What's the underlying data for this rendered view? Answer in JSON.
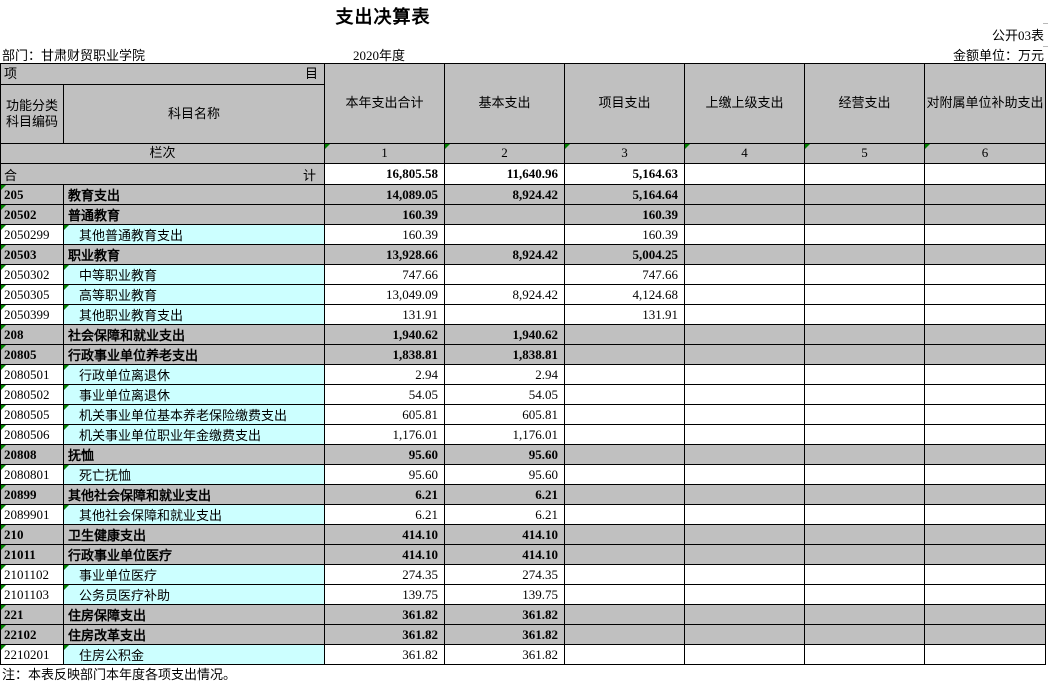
{
  "meta": {
    "title": "支出决算表",
    "table_code": "公开03表",
    "department": "部门：甘肃财贸职业学院",
    "year": "2020年度",
    "unit": "金额单位：万元",
    "note": "注：本表反映部门本年度各项支出情况。"
  },
  "colors": {
    "header_bg": "#C0C0C0",
    "detail_name_bg": "#CCFFFF",
    "error_indicator": "#008000"
  },
  "header": {
    "item_left": "项",
    "item_right": "目",
    "code_col": "功能分类科目编码",
    "name_col": "科目名称",
    "value_cols": [
      "本年支出合计",
      "基本支出",
      "项目支出",
      "上缴上级支出",
      "经营支出",
      "对附属单位补助支出"
    ],
    "lanci_label": "栏次",
    "col_numbers": [
      "1",
      "2",
      "3",
      "4",
      "5",
      "6"
    ]
  },
  "total_row": {
    "label_left": "合",
    "label_right": "计",
    "values": [
      "16,805.58",
      "11,640.96",
      "5,164.63",
      "",
      "",
      ""
    ]
  },
  "rows": [
    {
      "code": "205",
      "name": "教育支出",
      "level": "group",
      "values": [
        "14,089.05",
        "8,924.42",
        "5,164.64",
        "",
        "",
        ""
      ]
    },
    {
      "code": "20502",
      "name": "普通教育",
      "level": "group",
      "values": [
        "160.39",
        "",
        "160.39",
        "",
        "",
        ""
      ]
    },
    {
      "code": "2050299",
      "name": "其他普通教育支出",
      "level": "detail",
      "values": [
        "160.39",
        "",
        "160.39",
        "",
        "",
        ""
      ]
    },
    {
      "code": "20503",
      "name": "职业教育",
      "level": "group",
      "values": [
        "13,928.66",
        "8,924.42",
        "5,004.25",
        "",
        "",
        ""
      ]
    },
    {
      "code": "2050302",
      "name": "中等职业教育",
      "level": "detail",
      "values": [
        "747.66",
        "",
        "747.66",
        "",
        "",
        ""
      ]
    },
    {
      "code": "2050305",
      "name": "高等职业教育",
      "level": "detail",
      "values": [
        "13,049.09",
        "8,924.42",
        "4,124.68",
        "",
        "",
        ""
      ]
    },
    {
      "code": "2050399",
      "name": "其他职业教育支出",
      "level": "detail",
      "values": [
        "131.91",
        "",
        "131.91",
        "",
        "",
        ""
      ]
    },
    {
      "code": "208",
      "name": "社会保障和就业支出",
      "level": "group",
      "values": [
        "1,940.62",
        "1,940.62",
        "",
        "",
        "",
        ""
      ]
    },
    {
      "code": "20805",
      "name": "行政事业单位养老支出",
      "level": "group",
      "values": [
        "1,838.81",
        "1,838.81",
        "",
        "",
        "",
        ""
      ]
    },
    {
      "code": "2080501",
      "name": "行政单位离退休",
      "level": "detail",
      "values": [
        "2.94",
        "2.94",
        "",
        "",
        "",
        ""
      ]
    },
    {
      "code": "2080502",
      "name": "事业单位离退休",
      "level": "detail",
      "values": [
        "54.05",
        "54.05",
        "",
        "",
        "",
        ""
      ]
    },
    {
      "code": "2080505",
      "name": "机关事业单位基本养老保险缴费支出",
      "level": "detail",
      "values": [
        "605.81",
        "605.81",
        "",
        "",
        "",
        ""
      ]
    },
    {
      "code": "2080506",
      "name": "机关事业单位职业年金缴费支出",
      "level": "detail",
      "values": [
        "1,176.01",
        "1,176.01",
        "",
        "",
        "",
        ""
      ]
    },
    {
      "code": "20808",
      "name": "抚恤",
      "level": "group",
      "values": [
        "95.60",
        "95.60",
        "",
        "",
        "",
        ""
      ]
    },
    {
      "code": "2080801",
      "name": "死亡抚恤",
      "level": "detail",
      "values": [
        "95.60",
        "95.60",
        "",
        "",
        "",
        ""
      ]
    },
    {
      "code": "20899",
      "name": "其他社会保障和就业支出",
      "level": "group",
      "values": [
        "6.21",
        "6.21",
        "",
        "",
        "",
        ""
      ]
    },
    {
      "code": "2089901",
      "name": "其他社会保障和就业支出",
      "level": "detail",
      "values": [
        "6.21",
        "6.21",
        "",
        "",
        "",
        ""
      ]
    },
    {
      "code": "210",
      "name": "卫生健康支出",
      "level": "group",
      "values": [
        "414.10",
        "414.10",
        "",
        "",
        "",
        ""
      ]
    },
    {
      "code": "21011",
      "name": "行政事业单位医疗",
      "level": "group",
      "values": [
        "414.10",
        "414.10",
        "",
        "",
        "",
        ""
      ]
    },
    {
      "code": "2101102",
      "name": "事业单位医疗",
      "level": "detail",
      "values": [
        "274.35",
        "274.35",
        "",
        "",
        "",
        ""
      ]
    },
    {
      "code": "2101103",
      "name": "公务员医疗补助",
      "level": "detail",
      "values": [
        "139.75",
        "139.75",
        "",
        "",
        "",
        ""
      ]
    },
    {
      "code": "221",
      "name": "住房保障支出",
      "level": "group",
      "values": [
        "361.82",
        "361.82",
        "",
        "",
        "",
        ""
      ]
    },
    {
      "code": "22102",
      "name": "住房改革支出",
      "level": "group",
      "values": [
        "361.82",
        "361.82",
        "",
        "",
        "",
        ""
      ]
    },
    {
      "code": "2210201",
      "name": "住房公积金",
      "level": "detail",
      "values": [
        "361.82",
        "361.82",
        "",
        "",
        "",
        ""
      ]
    }
  ]
}
